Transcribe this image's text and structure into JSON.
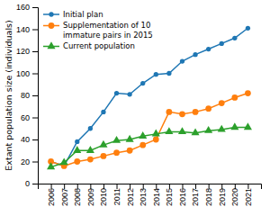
{
  "chart_data": {
    "type": "line",
    "ylabel": "Extant population size (individuals)",
    "x": [
      2006,
      2007,
      2008,
      2009,
      2010,
      2011,
      2012,
      2013,
      2014,
      2015,
      2016,
      2017,
      2018,
      2019,
      2020,
      2021
    ],
    "series": [
      {
        "name": "Initial plan",
        "marker": "circle",
        "values": [
          20,
          16,
          38,
          50,
          65,
          82,
          81,
          91,
          99,
          100,
          111,
          117,
          122,
          127,
          132,
          141
        ]
      },
      {
        "name": "Supplementation of 10\nimmature pairs in 2015",
        "marker": "circle",
        "values": [
          20,
          16,
          20,
          22,
          25,
          28,
          30,
          35,
          40,
          65,
          63,
          65,
          68,
          73,
          78,
          82
        ]
      },
      {
        "name": "Current population",
        "marker": "triangle",
        "values": [
          15,
          19,
          30,
          30,
          35,
          39,
          40,
          43,
          45,
          47,
          47,
          46,
          48,
          49,
          51,
          51
        ]
      }
    ],
    "xlim": [
      2005,
      2022
    ],
    "xticks": [
      2006,
      2007,
      2008,
      2009,
      2010,
      2011,
      2012,
      2013,
      2014,
      2015,
      2016,
      2017,
      2018,
      2019,
      2020,
      2021
    ],
    "ylim": [
      0,
      160
    ],
    "yticks": [
      0,
      20,
      40,
      60,
      80,
      100,
      120,
      140,
      160
    ],
    "grid": false,
    "legend": "upper left"
  }
}
